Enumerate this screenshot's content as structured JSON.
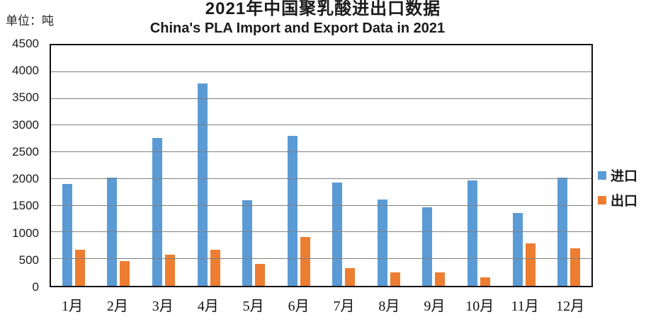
{
  "page": {
    "title_cn": "2021年中国聚乳酸进出口数据",
    "subtitle_en": "China's PLA Import and Export Data in 2021",
    "unit_label": "单位：吨"
  },
  "chart_data": {
    "type": "bar",
    "title": "2021年中国聚乳酸进出口数据",
    "subtitle": "China's PLA Import and Export Data in 2021",
    "unit": "吨",
    "categories": [
      "1月",
      "2月",
      "3月",
      "4月",
      "5月",
      "6月",
      "7月",
      "8月",
      "9月",
      "10月",
      "11月",
      "12月"
    ],
    "series": [
      {
        "key": "import",
        "name": "进口",
        "color": "#5B9BD5",
        "values": [
          1900,
          2020,
          2760,
          3780,
          1600,
          2800,
          1930,
          1620,
          1470,
          1970,
          1360,
          2020
        ]
      },
      {
        "key": "export",
        "name": "出口",
        "color": "#ED7D31",
        "values": [
          680,
          460,
          580,
          670,
          410,
          920,
          330,
          250,
          250,
          160,
          800,
          700
        ]
      }
    ],
    "xlabel": "",
    "ylabel": "单位：吨",
    "ylim": [
      0,
      4500
    ],
    "ytick_step": 500,
    "y_ticks": [
      4500,
      4000,
      3500,
      3000,
      2500,
      2000,
      1500,
      1000,
      500,
      0
    ],
    "grid": true,
    "gridline_color": "#808080",
    "axis_color": "#111111",
    "legend_position": "right"
  }
}
